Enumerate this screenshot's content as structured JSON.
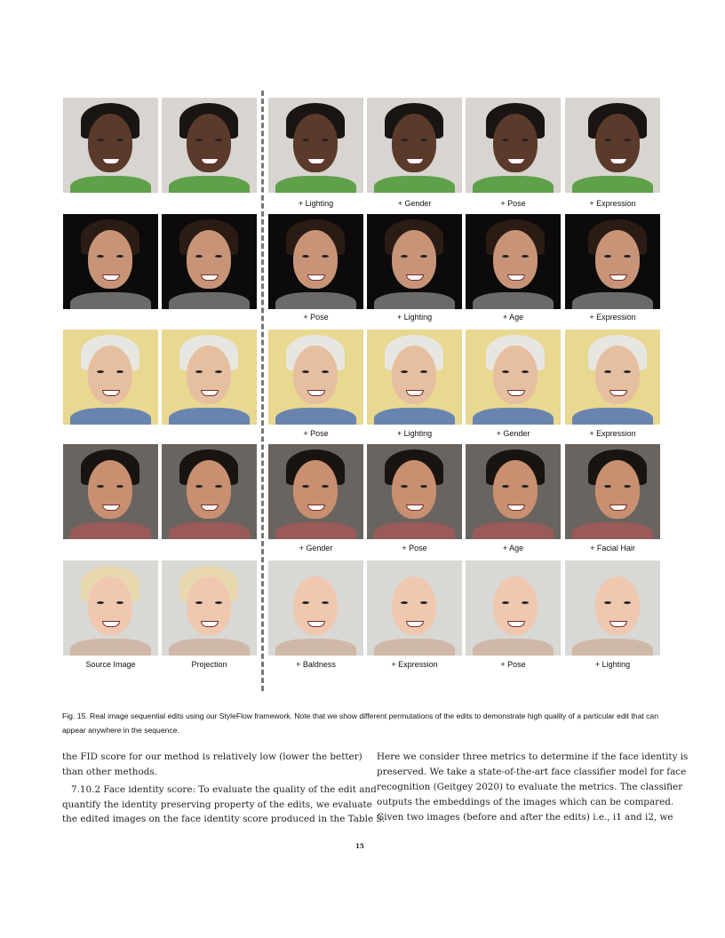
{
  "figure": {
    "rows": [
      {
        "labels": [
          "",
          "",
          "+ Lighting",
          "+ Gender",
          "+ Pose",
          "+ Expression"
        ],
        "bg": "#d8d4d0",
        "skin": "#5a3a2a",
        "hair": "#1a1412",
        "shirt": "#5fa04a"
      },
      {
        "labels": [
          "",
          "",
          "+ Pose",
          "+ Lighting",
          "+ Age",
          "+ Expression"
        ],
        "bg": "#0c0a0a",
        "skin": "#c89478",
        "hair": "#2a1c14",
        "shirt": "#6a6a6a"
      },
      {
        "labels": [
          "",
          "",
          "+ Pose",
          "+ Lighting",
          "+ Gender",
          "+ Expression"
        ],
        "bg": "#e8d890",
        "skin": "#e6bfa0",
        "hair": "#e8e6e0",
        "shirt": "#6a84b0"
      },
      {
        "labels": [
          "",
          "",
          "+ Gender",
          "+ Pose",
          "+ Age",
          "+ Facial Hair"
        ],
        "bg": "#6a6460",
        "skin": "#c89070",
        "hair": "#1a1410",
        "shirt": "#9a5a5a"
      },
      {
        "labels": [
          "Source Image",
          "Projection",
          "+ Baldness",
          "+ Expression",
          "+ Pose",
          "+ Lighting"
        ],
        "bg": "#d8d8d4",
        "skin": "#f0c8b0",
        "hair": "#e8d8b0",
        "shirt": "#d0b8a8"
      }
    ],
    "caption": "Fig. 15. Real image sequential edits using our StyleFlow framework. Note that we show different permutations of the edits to demonstrate high quality of a particular edit that can appear anywhere in the sequence."
  },
  "body": {
    "left": [
      "the FID score for our method is relatively low (lower the better)",
      "than other methods.",
      "7.10.2   Face identity score: To evaluate the quality of the edit and",
      "quantify the identity preserving property of the edits, we evaluate",
      "the edited images on the face identity score produced in the Table 3."
    ],
    "right": [
      "Here we consider three metrics to determine if the face identity is",
      "preserved. We take a state-of-the-art face classifier model for face",
      "recognition (Geitgey 2020) to evaluate the metrics. The classifier",
      "outputs the embeddings of the images which can be compared.",
      "Given two images (before and after the edits) i.e., i1 and i2, we"
    ]
  },
  "page_number": "15"
}
